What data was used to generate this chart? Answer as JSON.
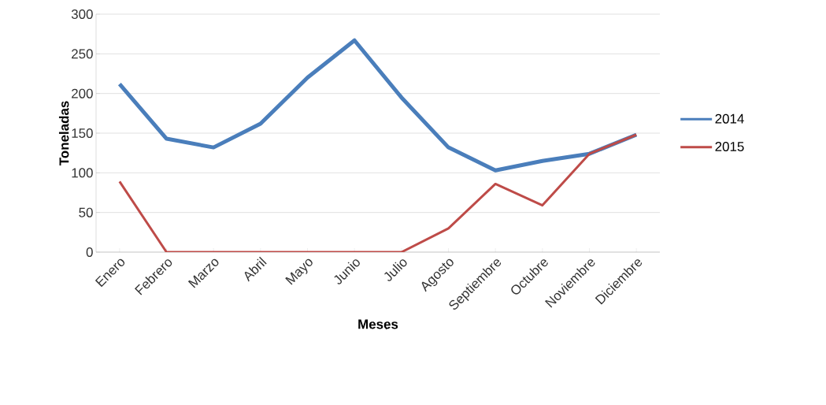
{
  "chart_data": {
    "type": "line",
    "xlabel": "Meses",
    "ylabel": "Toneladas",
    "categories": [
      "Enero",
      "Febrero",
      "Marzo",
      "Abril",
      "Mayo",
      "Junio",
      "Julio",
      "Agosto",
      "Septiembre",
      "Octubre",
      "Noviembre",
      "Diciembre"
    ],
    "series": [
      {
        "name": "2014",
        "color": "#4a7ebb",
        "values": [
          212,
          143,
          132,
          162,
          220,
          267,
          195,
          132,
          103,
          115,
          124,
          148
        ]
      },
      {
        "name": "2015",
        "color": "#be4b48",
        "values": [
          89,
          0,
          0,
          0,
          0,
          0,
          0,
          30,
          86,
          59,
          124,
          148
        ]
      }
    ],
    "ylim": [
      0,
      300
    ],
    "yticks": [
      0,
      50,
      100,
      150,
      200,
      250,
      300
    ],
    "grid": "y",
    "legend": "right"
  }
}
